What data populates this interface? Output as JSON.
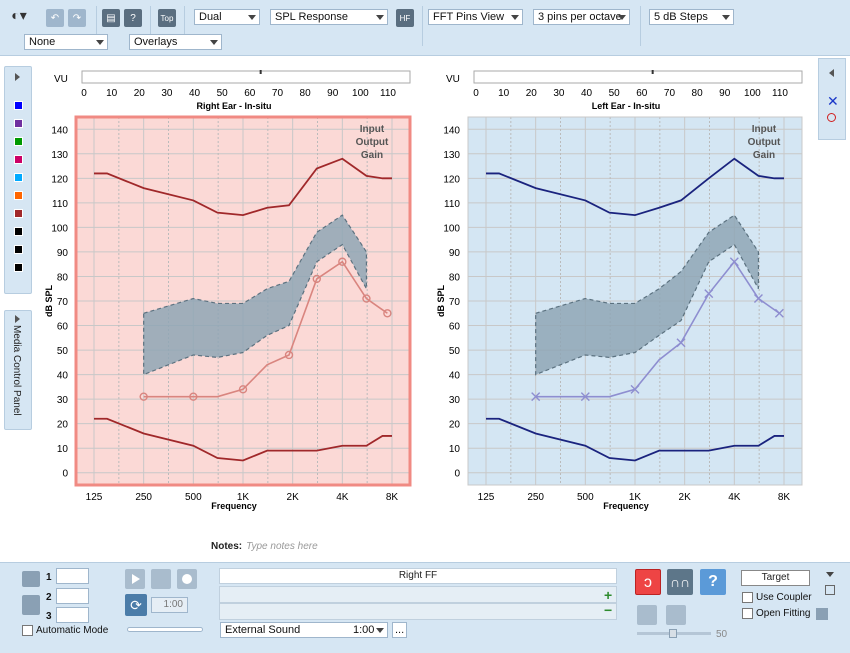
{
  "toolbar": {
    "mode_select": "Dual",
    "response_select": "SPL Response",
    "hf_label": "HF",
    "top_label": "Top",
    "view_select": "FFT Pins View",
    "pins_select": "3 pins per octave",
    "steps_select": "5 dB Steps",
    "filter_select": "None",
    "overlay_select": "Overlays"
  },
  "swatches": [
    "#0000ff",
    "#7030a0",
    "#009900",
    "#cc0066",
    "#00aaff",
    "#ff6600",
    "#a0282a",
    "#000000",
    "#000000",
    "#000000"
  ],
  "right_graph": {
    "vu_label": "VU",
    "vu_ticks": [
      "0",
      "10",
      "20",
      "30",
      "40",
      "50",
      "60",
      "70",
      "80",
      "90",
      "100",
      "110"
    ],
    "title": "Right Ear - In-situ",
    "y_label": "dB SPL",
    "x_label": "Frequency",
    "legend": [
      "Input",
      "Output",
      "Gain"
    ]
  },
  "left_graph": {
    "vu_label": "VU",
    "vu_ticks": [
      "0",
      "10",
      "20",
      "30",
      "40",
      "50",
      "60",
      "70",
      "80",
      "90",
      "100",
      "110"
    ],
    "title": "Left Ear - In-situ",
    "y_label": "dB SPL",
    "x_label": "Frequency",
    "legend": [
      "Input",
      "Output",
      "Gain"
    ]
  },
  "chart_data": [
    {
      "type": "line",
      "title": "Right Ear - In-situ",
      "xlabel": "Frequency",
      "ylabel": "dB SPL",
      "ylim": [
        -5,
        145
      ],
      "x_ticks": [
        "125",
        "250",
        "500",
        "1K",
        "2K",
        "4K",
        "8K"
      ],
      "y_ticks": [
        0,
        10,
        20,
        30,
        40,
        50,
        60,
        70,
        80,
        90,
        100,
        110,
        120,
        130,
        140
      ],
      "upper_line": [
        [
          125,
          122
        ],
        [
          150,
          122
        ],
        [
          250,
          116
        ],
        [
          500,
          111
        ],
        [
          700,
          106
        ],
        [
          1000,
          105
        ],
        [
          1400,
          108
        ],
        [
          1900,
          109
        ],
        [
          2800,
          124
        ],
        [
          4000,
          128
        ],
        [
          5600,
          121
        ],
        [
          7000,
          120
        ],
        [
          8000,
          120
        ]
      ],
      "lower_line": [
        [
          125,
          22
        ],
        [
          150,
          22
        ],
        [
          250,
          16
        ],
        [
          500,
          11
        ],
        [
          700,
          6
        ],
        [
          1000,
          5
        ],
        [
          1400,
          9
        ],
        [
          1900,
          9
        ],
        [
          2800,
          9
        ],
        [
          4000,
          11
        ],
        [
          5600,
          11
        ],
        [
          7000,
          15
        ],
        [
          8000,
          15
        ]
      ],
      "target": [
        [
          250,
          31
        ],
        [
          500,
          31
        ],
        [
          700,
          31
        ],
        [
          1000,
          34
        ],
        [
          1400,
          44
        ],
        [
          1900,
          48
        ],
        [
          2800,
          79
        ],
        [
          4000,
          86
        ],
        [
          5600,
          71
        ],
        [
          7500,
          65
        ]
      ],
      "target_markers": [
        [
          250,
          31
        ],
        [
          500,
          31
        ],
        [
          1000,
          34
        ],
        [
          1900,
          48
        ],
        [
          2800,
          79
        ],
        [
          4000,
          86
        ],
        [
          5600,
          71
        ],
        [
          7500,
          65
        ]
      ],
      "band_upper": [
        [
          250,
          65
        ],
        [
          500,
          71
        ],
        [
          700,
          69
        ],
        [
          1000,
          69
        ],
        [
          1400,
          75
        ],
        [
          1900,
          78
        ],
        [
          2800,
          98
        ],
        [
          4000,
          105
        ],
        [
          5600,
          90
        ]
      ],
      "band_lower": [
        [
          250,
          40
        ],
        [
          500,
          48
        ],
        [
          700,
          47
        ],
        [
          1000,
          49
        ],
        [
          1400,
          56
        ],
        [
          1900,
          60
        ],
        [
          2800,
          86
        ],
        [
          4000,
          93
        ],
        [
          5600,
          75
        ]
      ]
    },
    {
      "type": "line",
      "title": "Left Ear - In-situ",
      "xlabel": "Frequency",
      "ylabel": "dB SPL",
      "ylim": [
        -5,
        145
      ],
      "x_ticks": [
        "125",
        "250",
        "500",
        "1K",
        "2K",
        "4K",
        "8K"
      ],
      "y_ticks": [
        0,
        10,
        20,
        30,
        40,
        50,
        60,
        70,
        80,
        90,
        100,
        110,
        120,
        130,
        140
      ],
      "upper_line": [
        [
          125,
          122
        ],
        [
          150,
          122
        ],
        [
          250,
          116
        ],
        [
          500,
          111
        ],
        [
          700,
          106
        ],
        [
          1000,
          105
        ],
        [
          1400,
          108
        ],
        [
          1900,
          111
        ],
        [
          2800,
          120
        ],
        [
          4000,
          128
        ],
        [
          5600,
          121
        ],
        [
          7000,
          120
        ],
        [
          8000,
          120
        ]
      ],
      "lower_line": [
        [
          125,
          22
        ],
        [
          150,
          22
        ],
        [
          250,
          16
        ],
        [
          500,
          11
        ],
        [
          700,
          6
        ],
        [
          1000,
          5
        ],
        [
          1400,
          9
        ],
        [
          1900,
          9
        ],
        [
          2800,
          9
        ],
        [
          4000,
          11
        ],
        [
          5600,
          11
        ],
        [
          7000,
          15
        ],
        [
          8000,
          15
        ]
      ],
      "target": [
        [
          250,
          31
        ],
        [
          500,
          31
        ],
        [
          700,
          31
        ],
        [
          1000,
          34
        ],
        [
          1400,
          46
        ],
        [
          1900,
          53
        ],
        [
          2800,
          73
        ],
        [
          4000,
          86
        ],
        [
          5600,
          71
        ],
        [
          7500,
          65
        ]
      ],
      "target_markers": [
        [
          250,
          31
        ],
        [
          500,
          31
        ],
        [
          1000,
          34
        ],
        [
          1900,
          53
        ],
        [
          2800,
          73
        ],
        [
          4000,
          86
        ],
        [
          5600,
          71
        ],
        [
          7500,
          65
        ]
      ],
      "band_upper": [
        [
          250,
          65
        ],
        [
          500,
          71
        ],
        [
          700,
          69
        ],
        [
          1000,
          69
        ],
        [
          1400,
          75
        ],
        [
          1900,
          82
        ],
        [
          2800,
          98
        ],
        [
          4000,
          105
        ],
        [
          5600,
          90
        ]
      ],
      "band_lower": [
        [
          250,
          40
        ],
        [
          500,
          48
        ],
        [
          700,
          47
        ],
        [
          1000,
          49
        ],
        [
          1400,
          56
        ],
        [
          1900,
          62
        ],
        [
          2800,
          86
        ],
        [
          4000,
          93
        ],
        [
          5600,
          75
        ]
      ]
    }
  ],
  "colors": {
    "right_line": "#a0282a",
    "right_target": "#d9857f",
    "left_line": "#1a237e",
    "left_target": "#8e8ed0",
    "band_fill": "#8fa6b5",
    "band_stroke": "#5c7280",
    "right_bg": "#fbd9d6",
    "left_bg": "#d4e6f3",
    "right_border": "#f08a83"
  },
  "media_panel": {
    "label": "Media Control Panel"
  },
  "notes": {
    "label": "Notes:",
    "placeholder": "Type notes here"
  },
  "bottom": {
    "slot1": "1",
    "slot2": "2",
    "slot3": "3",
    "auto_mode": "Automatic Mode",
    "time_value": "1:00",
    "channel_label": "Right FF",
    "source_select": "External Sound",
    "source_time": "1:00",
    "ellipsis": "...",
    "volume_value": "50",
    "target_button": "Target",
    "use_coupler": "Use Coupler",
    "open_fitting": "Open Fitting",
    "plus": "+",
    "minus": "−",
    "help": "?"
  }
}
